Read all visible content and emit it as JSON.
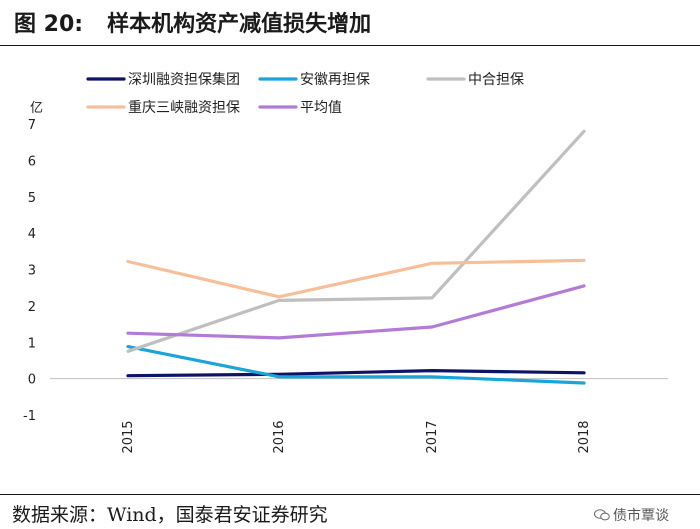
{
  "header": {
    "figure_number": "图 20:",
    "figure_title": "样本机构资产减值损失增加"
  },
  "footer": {
    "source": "数据来源：Wind，国泰君安证券研究",
    "watermark": "债市覃谈",
    "watermark_icon": "chat-bubble-icon"
  },
  "chart_data": {
    "type": "line",
    "title": "样本机构资产减值损失增加",
    "ylabel": "亿",
    "xlabel": "",
    "ylim": [
      -1,
      7
    ],
    "yticks": [
      -1,
      0,
      1,
      2,
      3,
      4,
      5,
      6,
      7
    ],
    "grid": false,
    "legend_position": "top",
    "categories": [
      "2015",
      "2016",
      "2017",
      "2018"
    ],
    "series": [
      {
        "name": "深圳融资担保集团",
        "color": "#0d1466",
        "values": [
          0.08,
          0.12,
          0.22,
          0.16
        ]
      },
      {
        "name": "安徽再担保",
        "color": "#1aa5d9",
        "values": [
          0.88,
          0.05,
          0.05,
          -0.12
        ]
      },
      {
        "name": "中合担保",
        "color": "#bfbfbf",
        "values": [
          0.75,
          2.15,
          2.22,
          6.8
        ]
      },
      {
        "name": "重庆三峡融资担保",
        "color": "#f5bf9a",
        "values": [
          3.22,
          2.25,
          3.17,
          3.25
        ]
      },
      {
        "name": "平均值",
        "color": "#b27cd6",
        "values": [
          1.25,
          1.12,
          1.42,
          2.55
        ]
      }
    ]
  }
}
